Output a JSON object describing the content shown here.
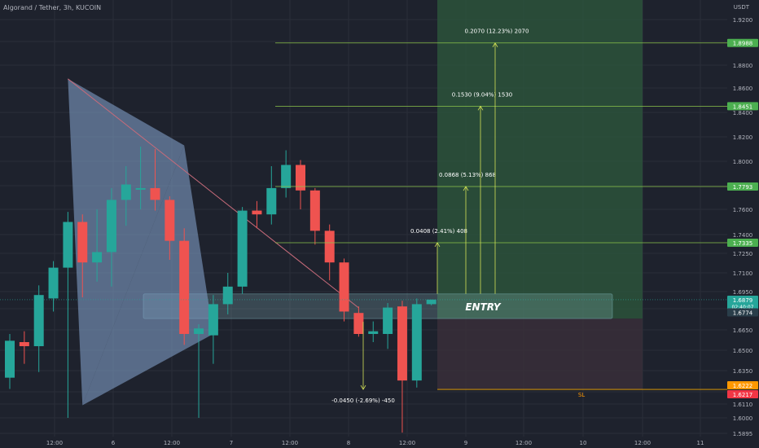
{
  "header": {
    "title": "Algorand / Tether, 3h, KUCOIN",
    "currency": "USDT"
  },
  "colors": {
    "background": "#1e222d",
    "grid": "#2a2e39",
    "up": "#26a69a",
    "down": "#ef5350",
    "pattern_fill": "#7f9cc4",
    "pattern_line": "#c76b7a",
    "target_line": "#8bc34a",
    "target_label": "#4caf50",
    "sl_line": "#f0a500",
    "sl_label": "#ff9800",
    "sl_label2": "#f23645",
    "price_label": "#26a69a",
    "text": "#b2b5be"
  },
  "chart_data": {
    "type": "candlestick",
    "title": "Algorand / Tether, 3h, KUCOIN",
    "y_axis": {
      "position": "right",
      "range": [
        1.5895,
        1.925
      ],
      "ticks": [
        "1.9200",
        "1.9000",
        "1.8800",
        "1.8600",
        "1.8400",
        "1.8200",
        "1.8000",
        "1.7800",
        "1.7600",
        "1.7400",
        "1.7250",
        "1.7100",
        "1.6950",
        "1.6800",
        "1.6650",
        "1.6500",
        "1.6350",
        "1.6200",
        "1.6110",
        "1.6000",
        "1.5895"
      ]
    },
    "x_axis": {
      "tick_labels": [
        "12:00",
        "6",
        "12:00",
        "7",
        "12:00",
        "8",
        "12:00",
        "9",
        "12:00",
        "10",
        "12:00",
        "11"
      ]
    },
    "candles": [
      {
        "o": 1.63,
        "h": 1.662,
        "l": 1.622,
        "c": 1.657
      },
      {
        "o": 1.656,
        "h": 1.664,
        "l": 1.64,
        "c": 1.653
      },
      {
        "o": 1.653,
        "h": 1.7,
        "l": 1.634,
        "c": 1.692
      },
      {
        "o": 1.689,
        "h": 1.719,
        "l": 1.678,
        "c": 1.714
      },
      {
        "o": 1.714,
        "h": 1.758,
        "l": 1.6,
        "c": 1.75
      },
      {
        "o": 1.75,
        "h": 1.756,
        "l": 1.69,
        "c": 1.718
      },
      {
        "o": 1.718,
        "h": 1.76,
        "l": 1.703,
        "c": 1.726
      },
      {
        "o": 1.726,
        "h": 1.778,
        "l": 1.699,
        "c": 1.768
      },
      {
        "o": 1.768,
        "h": 1.796,
        "l": 1.747,
        "c": 1.781
      },
      {
        "o": 1.778,
        "h": 1.812,
        "l": 1.76,
        "c": 1.778
      },
      {
        "o": 1.778,
        "h": 1.81,
        "l": 1.759,
        "c": 1.768
      },
      {
        "o": 1.768,
        "h": 1.771,
        "l": 1.72,
        "c": 1.735
      },
      {
        "o": 1.735,
        "h": 1.745,
        "l": 1.654,
        "c": 1.662
      },
      {
        "o": 1.662,
        "h": 1.669,
        "l": 1.6,
        "c": 1.666
      },
      {
        "o": 1.661,
        "h": 1.692,
        "l": 1.64,
        "c": 1.684
      },
      {
        "o": 1.684,
        "h": 1.71,
        "l": 1.676,
        "c": 1.699
      },
      {
        "o": 1.699,
        "h": 1.762,
        "l": 1.693,
        "c": 1.759
      },
      {
        "o": 1.759,
        "h": 1.767,
        "l": 1.745,
        "c": 1.756
      },
      {
        "o": 1.756,
        "h": 1.796,
        "l": 1.748,
        "c": 1.778
      },
      {
        "o": 1.778,
        "h": 1.809,
        "l": 1.77,
        "c": 1.797
      },
      {
        "o": 1.797,
        "h": 1.801,
        "l": 1.76,
        "c": 1.776
      },
      {
        "o": 1.776,
        "h": 1.778,
        "l": 1.732,
        "c": 1.743
      },
      {
        "o": 1.743,
        "h": 1.748,
        "l": 1.704,
        "c": 1.718
      },
      {
        "o": 1.718,
        "h": 1.721,
        "l": 1.671,
        "c": 1.678
      },
      {
        "o": 1.677,
        "h": 1.682,
        "l": 1.66,
        "c": 1.662
      },
      {
        "o": 1.662,
        "h": 1.671,
        "l": 1.656,
        "c": 1.664
      },
      {
        "o": 1.662,
        "h": 1.685,
        "l": 1.651,
        "c": 1.681
      },
      {
        "o": 1.682,
        "h": 1.687,
        "l": 1.59,
        "c": 1.628
      },
      {
        "o": 1.628,
        "h": 1.689,
        "l": 1.623,
        "c": 1.684
      },
      {
        "o": 1.684,
        "h": 1.688,
        "l": 1.683,
        "c": 1.688
      }
    ],
    "pattern_points": [
      [
        4,
        1.868
      ],
      [
        5,
        1.61
      ],
      [
        12,
        1.813
      ],
      [
        14,
        1.662
      ]
    ],
    "entry_zone": {
      "top": 1.693,
      "bottom": 1.673,
      "label": "ENTRY"
    },
    "stop_loss": {
      "price": 1.6217,
      "label": "SL"
    },
    "targets": [
      {
        "price": 1.7335,
        "measurement": "0.0408 (2.41%) 408"
      },
      {
        "price": 1.7793,
        "measurement": "0.0868 (5.13%) 868"
      },
      {
        "price": 1.8451,
        "measurement": "0.1530 (9.04%) 1530"
      },
      {
        "price": 1.8988,
        "measurement": "0.2070 (12.23%) 2070"
      }
    ],
    "risk_measurement": "-0.0450 (-2.69%) -450",
    "price_labels": [
      {
        "value": "1.8988",
        "kind": "target"
      },
      {
        "value": "1.8451",
        "kind": "target"
      },
      {
        "value": "1.7793",
        "kind": "target"
      },
      {
        "value": "1.7335",
        "kind": "target"
      },
      {
        "value": "1.6879",
        "kind": "current",
        "sub": "02:40:07"
      },
      {
        "value": "1.6774",
        "kind": "entry"
      },
      {
        "value": "1.6222",
        "kind": "sl"
      },
      {
        "value": "1.6217",
        "kind": "sl2"
      }
    ]
  }
}
